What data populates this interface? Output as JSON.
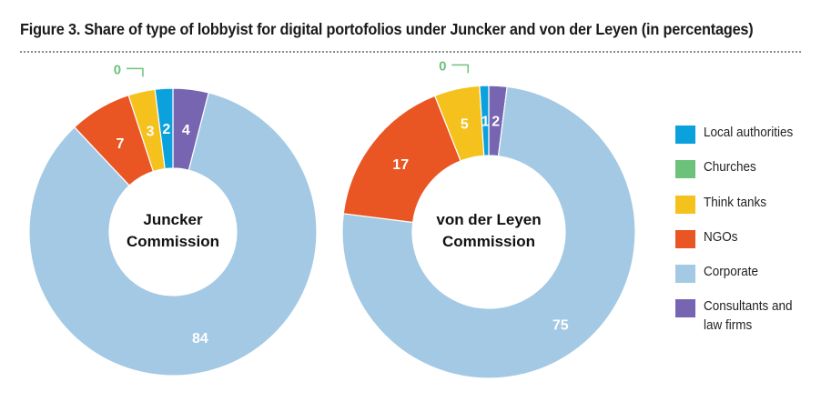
{
  "title": "Figure 3. Share of type of lobbyist for digital portofolios under Juncker and von der Leyen (in percentages)",
  "colors": {
    "Local authorities": "#0aa1dc",
    "Churches": "#6cc27a",
    "Think tanks": "#f5c11c",
    "NGOs": "#ea5524",
    "Corporate": "#a3c9e4",
    "Consultants and law firms": "#7865b2"
  },
  "legend": [
    {
      "label": "Local authorities",
      "key": "Local authorities"
    },
    {
      "label": "Churches",
      "key": "Churches"
    },
    {
      "label": "Think tanks",
      "key": "Think tanks"
    },
    {
      "label": "NGOs",
      "key": "NGOs"
    },
    {
      "label": "Corporate",
      "key": "Corporate"
    },
    {
      "label": "Consultants and\nlaw firms",
      "key": "Consultants and law firms"
    }
  ],
  "chart_data": [
    {
      "type": "pie",
      "donut": true,
      "center_label": [
        "Juncker",
        "Commission"
      ],
      "categories": [
        "Local authorities",
        "Churches",
        "Think tanks",
        "NGOs",
        "Corporate",
        "Consultants and law firms"
      ],
      "values": [
        2,
        0,
        3,
        7,
        84,
        4
      ],
      "labels": [
        "2",
        "0",
        "3",
        "7",
        "84",
        "4"
      ]
    },
    {
      "type": "pie",
      "donut": true,
      "center_label": [
        "von der Leyen",
        "Commission"
      ],
      "categories": [
        "Local authorities",
        "Churches",
        "Think tanks",
        "NGOs",
        "Corporate",
        "Consultants and law firms"
      ],
      "values": [
        1,
        0,
        5,
        17,
        75,
        2
      ],
      "labels": [
        "1",
        "0",
        "5",
        "17",
        "75",
        "2"
      ]
    }
  ]
}
